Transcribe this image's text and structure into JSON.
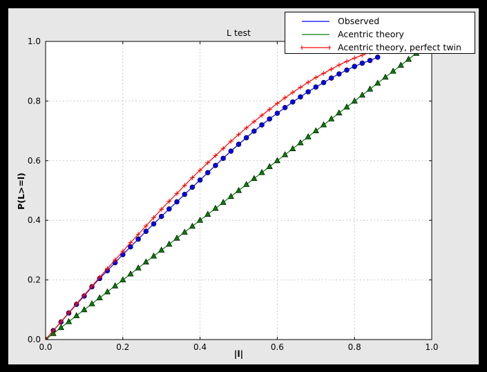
{
  "window": {
    "frame_color": "#000000",
    "figure_bg": "#e7e7e7",
    "plot_bg": "#ffffff",
    "grid_color": "#c9c9c9",
    "spine_color": "#000000",
    "tick_label_color": "#000000"
  },
  "legend": {
    "items": [
      {
        "label": "Observed",
        "color": "#0000ff",
        "sample_marker": "none"
      },
      {
        "label": "Acentric theory",
        "color": "#008000",
        "sample_marker": "none"
      },
      {
        "label": "Acentric theory, perfect twin",
        "color": "#ff0000",
        "sample_marker": "plus"
      }
    ]
  },
  "chart_data": {
    "type": "line",
    "title": "L test",
    "xlabel": "|l|",
    "ylabel": "P(L>=l)",
    "xlim": [
      0.0,
      1.0
    ],
    "ylim": [
      0.0,
      1.0
    ],
    "xticks": [
      0.0,
      0.2,
      0.4,
      0.6,
      0.8,
      1.0
    ],
    "yticks": [
      0.0,
      0.2,
      0.4,
      0.6,
      0.8,
      1.0
    ],
    "grid": true,
    "grid_style": "dashed",
    "legend_position": "upper right",
    "series": [
      {
        "name": "Observed",
        "color": "#0000ff",
        "marker": "circle",
        "x": [
          0,
          0.02,
          0.04,
          0.06,
          0.08,
          0.1,
          0.12,
          0.14,
          0.16,
          0.18,
          0.2,
          0.22,
          0.24,
          0.26,
          0.28,
          0.3,
          0.32,
          0.34,
          0.36,
          0.38,
          0.4,
          0.42,
          0.44,
          0.46,
          0.48,
          0.5,
          0.52,
          0.54,
          0.56,
          0.58,
          0.6,
          0.62,
          0.64,
          0.66,
          0.68,
          0.7,
          0.72,
          0.74,
          0.76,
          0.78,
          0.8,
          0.82,
          0.84,
          0.86
        ],
        "y": [
          0,
          0.03,
          0.059,
          0.089,
          0.118,
          0.146,
          0.177,
          0.205,
          0.231,
          0.258,
          0.285,
          0.311,
          0.337,
          0.363,
          0.388,
          0.413,
          0.438,
          0.462,
          0.487,
          0.511,
          0.535,
          0.56,
          0.584,
          0.608,
          0.632,
          0.655,
          0.677,
          0.699,
          0.72,
          0.74,
          0.759,
          0.778,
          0.797,
          0.814,
          0.831,
          0.847,
          0.862,
          0.877,
          0.891,
          0.904,
          0.916,
          0.927,
          0.936,
          0.947
        ]
      },
      {
        "name": "Acentric theory",
        "color": "#008000",
        "marker": "triangle",
        "x": [
          0,
          0.02,
          0.04,
          0.06,
          0.08,
          0.1,
          0.12,
          0.14,
          0.16,
          0.18,
          0.2,
          0.22,
          0.24,
          0.26,
          0.28,
          0.3,
          0.32,
          0.34,
          0.36,
          0.38,
          0.4,
          0.42,
          0.44,
          0.46,
          0.48,
          0.5,
          0.52,
          0.54,
          0.56,
          0.58,
          0.6,
          0.62,
          0.64,
          0.66,
          0.68,
          0.7,
          0.72,
          0.74,
          0.76,
          0.78,
          0.8,
          0.82,
          0.84,
          0.86,
          0.88,
          0.9,
          0.92,
          0.94,
          0.96
        ],
        "y": [
          0,
          0.02,
          0.04,
          0.06,
          0.08,
          0.1,
          0.12,
          0.14,
          0.16,
          0.18,
          0.2,
          0.22,
          0.24,
          0.26,
          0.28,
          0.3,
          0.32,
          0.34,
          0.36,
          0.38,
          0.4,
          0.42,
          0.44,
          0.46,
          0.48,
          0.5,
          0.52,
          0.54,
          0.56,
          0.58,
          0.6,
          0.62,
          0.64,
          0.66,
          0.68,
          0.7,
          0.72,
          0.74,
          0.76,
          0.78,
          0.8,
          0.82,
          0.84,
          0.86,
          0.88,
          0.9,
          0.92,
          0.94,
          0.96
        ]
      },
      {
        "name": "Acentric theory, perfect twin",
        "color": "#ff0000",
        "marker": "plus",
        "x": [
          0,
          0.02,
          0.04,
          0.06,
          0.08,
          0.1,
          0.12,
          0.14,
          0.16,
          0.18,
          0.2,
          0.22,
          0.24,
          0.26,
          0.28,
          0.3,
          0.32,
          0.34,
          0.36,
          0.38,
          0.4,
          0.42,
          0.44,
          0.46,
          0.48,
          0.5,
          0.52,
          0.54,
          0.56,
          0.58,
          0.6,
          0.62,
          0.64,
          0.66,
          0.68,
          0.7,
          0.72,
          0.74,
          0.76,
          0.78,
          0.8,
          0.82,
          0.84
        ],
        "y": [
          0,
          0.03,
          0.06,
          0.09,
          0.12,
          0.149,
          0.179,
          0.209,
          0.238,
          0.267,
          0.296,
          0.325,
          0.353,
          0.381,
          0.409,
          0.437,
          0.464,
          0.49,
          0.517,
          0.543,
          0.568,
          0.593,
          0.617,
          0.641,
          0.665,
          0.688,
          0.71,
          0.731,
          0.752,
          0.772,
          0.792,
          0.811,
          0.829,
          0.846,
          0.863,
          0.879,
          0.893,
          0.907,
          0.921,
          0.933,
          0.944,
          0.954,
          0.964
        ]
      }
    ]
  }
}
